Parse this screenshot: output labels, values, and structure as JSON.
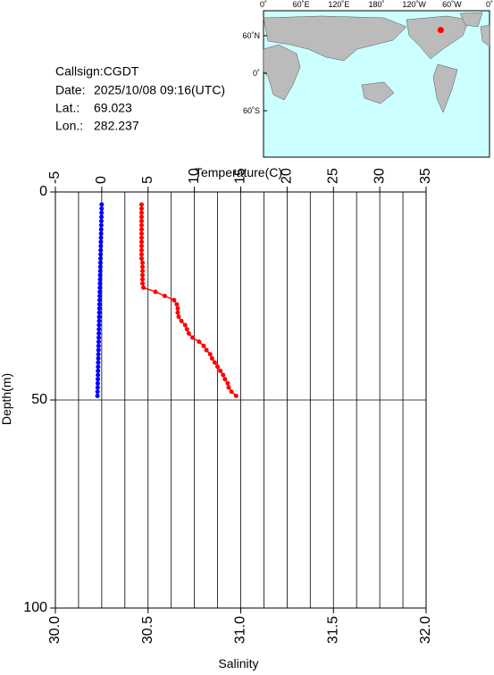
{
  "info": {
    "callsign": "Callsign:CGDT",
    "date_label": "Date:",
    "date": "2025/10/08 09:16(UTC)",
    "lat_label": "Lat.:",
    "lat": 69.023,
    "lon_label": "Lon.:",
    "lon": 282.237
  },
  "map": {
    "lon_labels": [
      "0˚",
      "60˚E",
      "120˚E",
      "180˚",
      "120˚W",
      "60˚W",
      "0˚"
    ],
    "lat_labels": [
      "60˚N",
      "0˚",
      "60˚S"
    ],
    "point": {
      "lon": 282.237,
      "lat": 69.023,
      "color": "#ff0000"
    }
  },
  "chart_data": {
    "type": "profile",
    "y_label": "Depth(m)",
    "ylim": [
      0,
      100
    ],
    "yticks": [
      0,
      50,
      100
    ],
    "grid": true,
    "top_axis": {
      "label": "Temperature(C)",
      "lim": [
        -5,
        35
      ],
      "ticks": [
        -5,
        0,
        5,
        10,
        15,
        20,
        25,
        30,
        35
      ],
      "grid": [
        -2.5,
        0,
        2.5,
        5,
        7.5,
        10,
        12.5,
        15,
        17.5,
        20,
        22.5,
        25,
        27.5,
        30,
        32.5
      ]
    },
    "bottom_axis": {
      "label": "Salinity",
      "lim": [
        30,
        32
      ],
      "ticks": [
        {
          "value": 30,
          "label": "30.0"
        },
        30.5,
        {
          "value": 31,
          "label": "31.0"
        },
        31.5,
        {
          "value": 32,
          "label": "32.0"
        }
      ]
    },
    "y": [
      3,
      4,
      5,
      6,
      7,
      8,
      9,
      10,
      11,
      12,
      13,
      14,
      15,
      16,
      17,
      18,
      19,
      20,
      21,
      22,
      23,
      24,
      25,
      26,
      27,
      28,
      29,
      30,
      31,
      32,
      33,
      34,
      35,
      36,
      37,
      38,
      39,
      40,
      41,
      42,
      43,
      44,
      45,
      46,
      47,
      48,
      49
    ],
    "series": [
      {
        "axis": "top",
        "color": "#ff0000",
        "values": [
          4.3,
          4.3,
          4.3,
          4.3,
          4.3,
          4.3,
          4.3,
          4.3,
          4.3,
          4.3,
          4.3,
          4.3,
          4.3,
          4.3,
          4.4,
          4.4,
          4.4,
          4.4,
          4.4,
          4.4,
          4.5,
          5.8,
          6.8,
          7.8,
          8.1,
          8.2,
          8.2,
          8.3,
          8.6,
          9.0,
          9.2,
          9.4,
          9.8,
          10.5,
          11.0,
          11.3,
          11.7,
          11.9,
          12.2,
          12.5,
          12.8,
          13.1,
          13.3,
          13.6,
          13.7,
          14.0,
          14.5
        ]
      },
      {
        "axis": "bottom",
        "color": "#0000ff",
        "values": [
          30.25,
          30.2495,
          30.249,
          30.2485,
          30.248,
          30.2475,
          30.247,
          30.2465,
          30.246,
          30.2455,
          30.245,
          30.2445,
          30.244,
          30.2435,
          30.243,
          30.2425,
          30.242,
          30.2415,
          30.241,
          30.2405,
          30.24,
          30.2395,
          30.239,
          30.2385,
          30.238,
          30.2375,
          30.237,
          30.2365,
          30.236,
          30.2355,
          30.235,
          30.2345,
          30.234,
          30.2335,
          30.233,
          30.2325,
          30.232,
          30.2315,
          30.231,
          30.2305,
          30.23,
          30.2295,
          30.229,
          30.2285,
          30.228,
          30.2275,
          30.227
        ]
      }
    ]
  }
}
